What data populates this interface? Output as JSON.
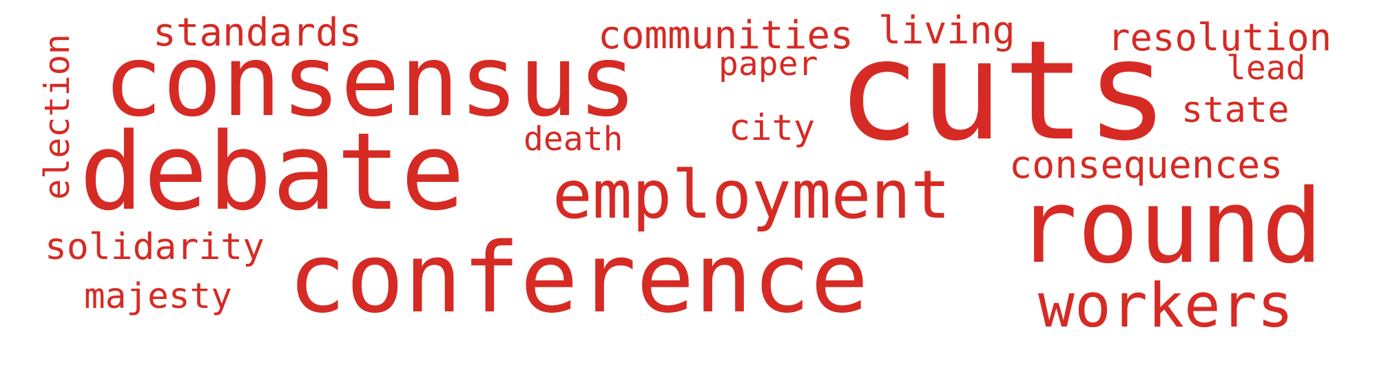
{
  "color": "#d62a24",
  "words": [
    {
      "text": "consensus"
    },
    {
      "text": "cuts"
    },
    {
      "text": "debate"
    },
    {
      "text": "conference"
    },
    {
      "text": "round"
    },
    {
      "text": "employment"
    },
    {
      "text": "workers"
    },
    {
      "text": "consequences"
    },
    {
      "text": "communities"
    },
    {
      "text": "resolution"
    },
    {
      "text": "standards"
    },
    {
      "text": "solidarity"
    },
    {
      "text": "living"
    },
    {
      "text": "majesty"
    },
    {
      "text": "election"
    },
    {
      "text": "death"
    },
    {
      "text": "paper"
    },
    {
      "text": "state"
    },
    {
      "text": "lead"
    },
    {
      "text": "city"
    }
  ]
}
